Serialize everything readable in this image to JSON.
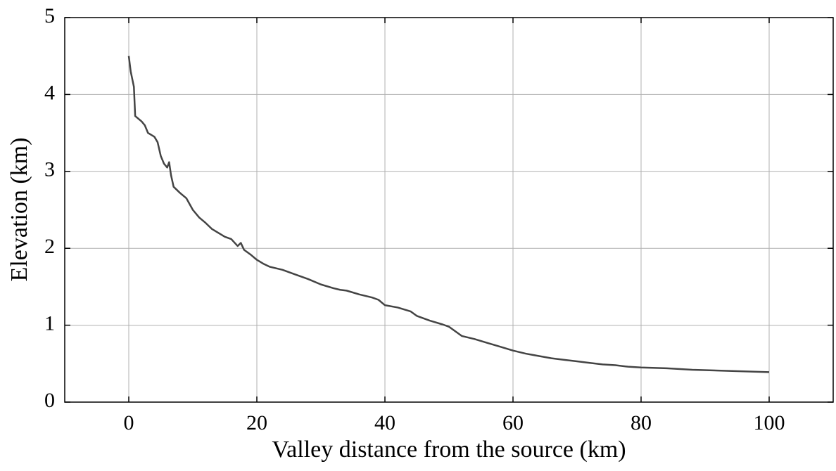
{
  "chart_data": {
    "type": "line",
    "x_label": "Valley distance from the source (km)",
    "y_label": "Elevation (km)",
    "xlim": [
      -10,
      110
    ],
    "ylim": [
      0,
      5
    ],
    "xticks": [
      0,
      20,
      40,
      60,
      80,
      100
    ],
    "yticks": [
      0,
      1,
      2,
      3,
      4,
      5
    ],
    "grid": true,
    "series": [
      {
        "color": "#444444",
        "x": [
          0,
          0.3,
          0.8,
          1.0,
          2,
          2.5,
          3,
          4,
          4.5,
          5,
          5.5,
          6,
          6.3,
          6.6,
          7,
          8,
          9,
          10,
          11,
          12,
          13,
          14,
          15,
          16,
          17,
          17.5,
          18,
          19,
          20,
          21,
          22,
          24,
          26,
          28,
          30,
          32,
          33,
          34,
          36,
          38,
          39,
          40,
          42,
          44,
          45,
          47,
          49,
          50,
          52,
          54,
          56,
          58,
          60,
          62,
          64,
          66,
          68,
          70,
          72,
          74,
          76,
          78,
          80,
          84,
          88,
          92,
          96,
          100
        ],
        "values": [
          4.5,
          4.3,
          4.1,
          3.72,
          3.65,
          3.6,
          3.5,
          3.45,
          3.38,
          3.2,
          3.1,
          3.05,
          3.12,
          2.95,
          2.8,
          2.72,
          2.65,
          2.5,
          2.4,
          2.33,
          2.25,
          2.2,
          2.15,
          2.12,
          2.03,
          2.07,
          1.98,
          1.92,
          1.85,
          1.8,
          1.76,
          1.72,
          1.66,
          1.6,
          1.53,
          1.48,
          1.46,
          1.45,
          1.4,
          1.36,
          1.33,
          1.26,
          1.23,
          1.18,
          1.12,
          1.06,
          1.01,
          0.98,
          0.86,
          0.82,
          0.77,
          0.72,
          0.67,
          0.63,
          0.6,
          0.57,
          0.55,
          0.53,
          0.51,
          0.49,
          0.48,
          0.46,
          0.45,
          0.44,
          0.42,
          0.41,
          0.4,
          0.39
        ]
      }
    ]
  }
}
